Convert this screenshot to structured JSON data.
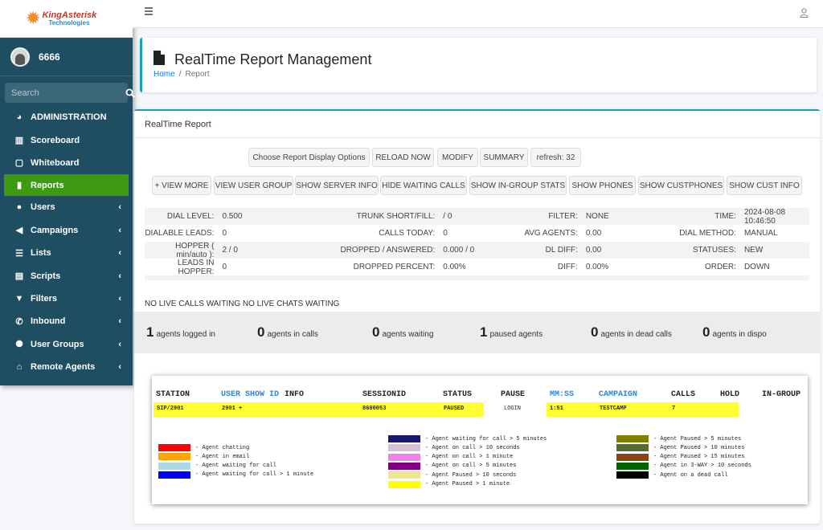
{
  "brand": {
    "line1": "KingAsterisk",
    "line2": "Technologies"
  },
  "user": {
    "name": "6666"
  },
  "search": {
    "placeholder": "Search"
  },
  "nav": [
    {
      "label": "ADMINISTRATION",
      "icon": "gauge-icon"
    },
    {
      "label": "Scoreboard",
      "icon": "chart-icon"
    },
    {
      "label": "Whiteboard",
      "icon": "square-icon"
    },
    {
      "label": "Reports",
      "icon": "file-icon",
      "active": true
    },
    {
      "label": "Users",
      "icon": "user-icon",
      "chevron": "‹"
    },
    {
      "label": "Campaigns",
      "icon": "megaphone-icon",
      "chevron": "‹"
    },
    {
      "label": "Lists",
      "icon": "list-icon",
      "chevron": "‹"
    },
    {
      "label": "Scripts",
      "icon": "script-icon",
      "chevron": "‹"
    },
    {
      "label": "Filters",
      "icon": "filter-icon",
      "chevron": "‹"
    },
    {
      "label": "Inbound",
      "icon": "phone-icon",
      "chevron": "‹"
    },
    {
      "label": "User Groups",
      "icon": "users-icon",
      "chevron": "‹"
    },
    {
      "label": "Remote Agents",
      "icon": "agent-icon",
      "chevron": "‹"
    }
  ],
  "header": {
    "title": "RealTime Report Management",
    "crumb_home": "Home",
    "crumb_sep": "/",
    "crumb_current": "Report"
  },
  "card": {
    "title": "RealTime Report"
  },
  "toolbar1": [
    "Choose Report Display Options",
    "RELOAD NOW",
    "MODIFY",
    "SUMMARY",
    "refresh: 32"
  ],
  "toolbar2": [
    "+ VIEW MORE",
    "VIEW USER GROUP",
    "SHOW SERVER INFO",
    "HIDE WAITING CALLS",
    "SHOW IN-GROUP STATS",
    "SHOW PHONES",
    "SHOW CUSTPHONES",
    "SHOW CUST INFO"
  ],
  "stats": [
    [
      "DIAL LEVEL:",
      "0.500",
      "TRUNK SHORT/FILL:",
      "/ 0",
      "FILTER:",
      "NONE",
      "TIME:",
      "2024-08-08 10:46:50"
    ],
    [
      "DIALABLE LEADS:",
      "0",
      "CALLS TODAY:",
      "0",
      "AVG AGENTS:",
      "0.00",
      "DIAL METHOD:",
      "MANUAL"
    ],
    [
      "HOPPER ( min/auto ):",
      "2 / 0",
      "DROPPED / ANSWERED:",
      "0.000 / 0",
      "DL DIFF:",
      "0.00",
      "STATUSES:",
      "NEW"
    ],
    [
      "LEADS IN HOPPER:",
      "0",
      "DROPPED PERCENT:",
      "0.00%",
      "DIFF:",
      "0.00%",
      "ORDER:",
      "DOWN"
    ]
  ],
  "waiting": "NO LIVE CALLS WAITING NO LIVE CHATS WAITING",
  "agents": [
    {
      "num": "1",
      "label": "agents logged in"
    },
    {
      "num": "0",
      "label": "agents in calls"
    },
    {
      "num": "0",
      "label": "agents waiting"
    },
    {
      "num": "1",
      "label": "paused agents"
    },
    {
      "num": "0",
      "label": "agents in dead calls"
    },
    {
      "num": "0",
      "label": "agents in dispo"
    }
  ],
  "realtime": {
    "headers": [
      "STATION",
      "USER SHOW ID",
      "INFO",
      "SESSIONID",
      "STATUS",
      "PAUSE",
      "MM:SS",
      "CAMPAIGN",
      "CALLS",
      "HOLD",
      "IN-GROUP"
    ],
    "row": {
      "station": "SIP/2901",
      "user": "2901 +",
      "session": "8600053",
      "status": "PAUSED",
      "pause": "LOGIN",
      "time": "1:51",
      "campaign": "TESTCAMP",
      "calls": "7"
    }
  },
  "legend": [
    {
      "color": "#ff0000",
      "label": "- Agent chatting"
    },
    {
      "color": "#ffa500",
      "label": "- Agent in email"
    },
    {
      "color": "#add8e6",
      "label": "- Agent waiting for call"
    },
    {
      "color": "#0000ff",
      "label": "- Agent waiting for call > 1 minute"
    },
    {
      "color": "#191970",
      "label": "- Agent waiting for call > 5 minutes"
    },
    {
      "color": "#d8bfd8",
      "label": "- Agent on call > 10 seconds"
    },
    {
      "color": "#ee82ee",
      "label": "- Agent on call > 1 minute"
    },
    {
      "color": "#800080",
      "label": "- Agent on call > 5 minutes"
    },
    {
      "color": "#f0e68c",
      "label": "- Agent Paused > 10 seconds"
    },
    {
      "color": "#ffff00",
      "label": "- Agent Paused > 1 minute"
    },
    {
      "color": "#808000",
      "label": "- Agent Paused > 5 minutes"
    },
    {
      "color": "#556b2f",
      "label": "- Agent Paused > 10 minutes"
    },
    {
      "color": "#8b4513",
      "label": "- Agent Paused > 15 minutes"
    },
    {
      "color": "#006400",
      "label": "- Agent in 3-WAY > 10 seconds"
    },
    {
      "color": "#000000",
      "label": "- Agent on a dead call"
    }
  ]
}
